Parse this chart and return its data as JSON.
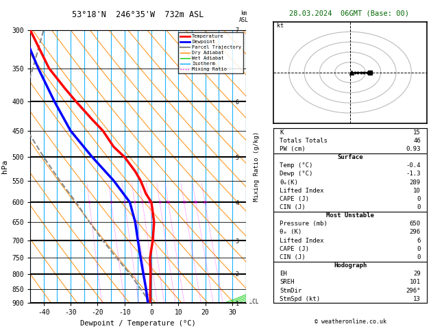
{
  "title_left": "53°18'N  246°35'W  732m ASL",
  "title_right": "28.03.2024  06GMT (Base: 00)",
  "xlabel": "Dewpoint / Temperature (°C)",
  "ylabel_left": "hPa",
  "pressure_levels": [
    300,
    350,
    400,
    450,
    500,
    550,
    600,
    650,
    700,
    750,
    800,
    850,
    900
  ],
  "temp_ticks": [
    -40,
    -30,
    -20,
    -10,
    0,
    10,
    20,
    30
  ],
  "km_ticks": [
    1,
    2,
    3,
    4,
    5,
    6,
    7
  ],
  "km_pressures": [
    900,
    800,
    700,
    600,
    500,
    400,
    300
  ],
  "temp_profile": {
    "pressures": [
      300,
      350,
      380,
      400,
      430,
      450,
      480,
      500,
      530,
      550,
      580,
      600,
      650,
      700,
      750,
      800,
      850,
      900
    ],
    "temps": [
      -45,
      -38,
      -32,
      -28,
      -22,
      -18,
      -14,
      -10,
      -6,
      -4,
      -2,
      0,
      1,
      0.5,
      -0.5,
      -0.3,
      -0.4,
      -0.4
    ],
    "color": "#ff0000",
    "linewidth": 2.5
  },
  "dewpoint_profile": {
    "pressures": [
      300,
      350,
      400,
      450,
      500,
      550,
      600,
      650,
      700,
      750,
      800,
      850,
      900
    ],
    "temps": [
      -48,
      -42,
      -36,
      -30,
      -22,
      -14,
      -8,
      -6,
      -5,
      -4,
      -3,
      -2,
      -1.3
    ],
    "color": "#0000ff",
    "linewidth": 2.5
  },
  "parcel_profile": {
    "pressures": [
      900,
      850,
      800,
      750,
      700,
      650,
      600,
      550,
      500,
      450,
      400,
      350,
      300
    ],
    "temps": [
      -0.4,
      -4,
      -8,
      -13,
      -18,
      -23,
      -28,
      -34,
      -40,
      -46,
      -48,
      -44,
      -40
    ],
    "color": "#888888",
    "linewidth": 1.5
  },
  "isotherm_color": "#00aaff",
  "isotherm_lw": 0.8,
  "dry_adiabat_color": "#ff8800",
  "dry_adiabat_lw": 0.8,
  "wet_adiabat_color": "#00cc00",
  "wet_adiabat_lw": 0.8,
  "mixing_ratio_color": "#ff00ff",
  "mixing_ratio_lw": 0.5,
  "legend_items": [
    {
      "label": "Temperature",
      "color": "#ff0000",
      "lw": 2,
      "ls": "-"
    },
    {
      "label": "Dewpoint",
      "color": "#0000ff",
      "lw": 2,
      "ls": "-"
    },
    {
      "label": "Parcel Trajectory",
      "color": "#888888",
      "lw": 1.5,
      "ls": "-"
    },
    {
      "label": "Dry Adiabat",
      "color": "#ff8800",
      "lw": 1,
      "ls": "-"
    },
    {
      "label": "Wet Adiabat",
      "color": "#00cc00",
      "lw": 1,
      "ls": "-"
    },
    {
      "label": "Isotherm",
      "color": "#00aaff",
      "lw": 1,
      "ls": "-"
    },
    {
      "label": "Mixing Ratio",
      "color": "#ff00ff",
      "lw": 1,
      "ls": ":"
    }
  ],
  "lcl_pressure": 895,
  "background_color": "#ffffff",
  "copyright": "© weatheronline.co.uk"
}
